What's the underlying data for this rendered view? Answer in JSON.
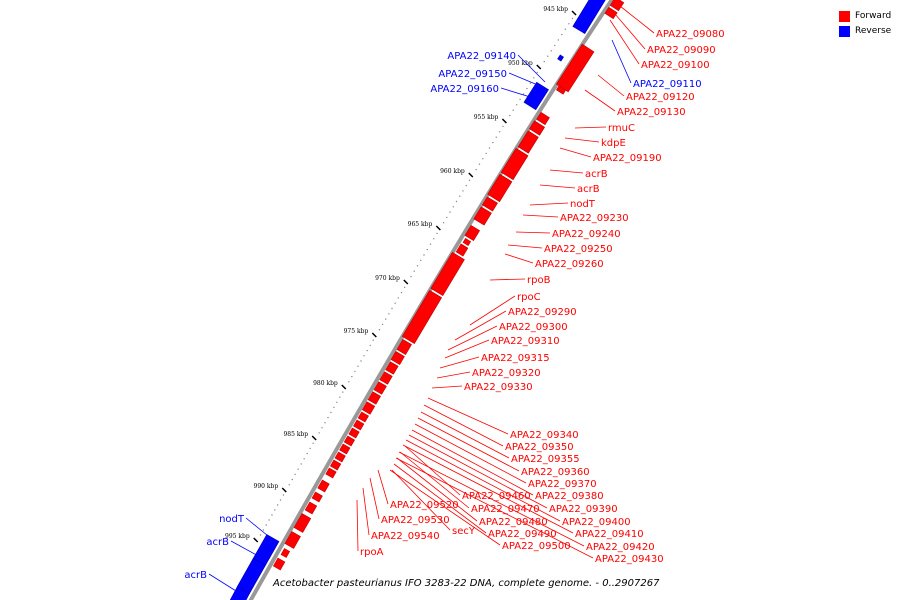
{
  "caption": "Acetobacter pasteurianus IFO 3283-22 DNA, complete genome. - 0..2907267",
  "legend": {
    "forward": {
      "label": "Forward",
      "color": "#ff0000"
    },
    "reverse": {
      "label": "Reverse",
      "color": "#0000ff"
    }
  },
  "colors": {
    "forward": "#ff0000",
    "reverse": "#0000ff",
    "backbone": "#999999",
    "ticks": "#000000"
  },
  "kbp_ticks": [
    {
      "label": "945 kbp"
    },
    {
      "label": "950 kbp"
    },
    {
      "label": "955 kbp"
    },
    {
      "label": "960 kbp"
    },
    {
      "label": "965 kbp"
    },
    {
      "label": "970 kbp"
    },
    {
      "label": "975 kbp"
    },
    {
      "label": "980 kbp"
    },
    {
      "label": "985 kbp"
    },
    {
      "label": "990 kbp"
    },
    {
      "label": "995 kbp"
    }
  ],
  "forward_labels": [
    "APA22_09080",
    "APA22_09090",
    "APA22_09100",
    "APA22_09120",
    "APA22_09130",
    "rmuC",
    "kdpE",
    "APA22_09190",
    "acrB",
    "acrB",
    "nodT",
    "APA22_09230",
    "APA22_09240",
    "APA22_09250",
    "APA22_09260",
    "rpoB",
    "rpoC",
    "APA22_09290",
    "APA22_09300",
    "APA22_09310",
    "APA22_09315",
    "APA22_09320",
    "APA22_09330",
    "APA22_09340",
    "APA22_09350",
    "APA22_09355",
    "APA22_09360",
    "APA22_09370",
    "APA22_09380",
    "APA22_09460",
    "APA22_09390",
    "APA22_09470",
    "APA22_09520",
    "APA22_09400",
    "APA22_09480",
    "APA22_09530",
    "APA22_09410",
    "secY",
    "APA22_09490",
    "APA22_09540",
    "APA22_09420",
    "APA22_09500",
    "rpoA",
    "APA22_09430"
  ],
  "reverse_labels": [
    "APA22_09140",
    "APA22_09150",
    "APA22_09160",
    "APA22_09110",
    "nodT",
    "acrB",
    "acrB"
  ]
}
